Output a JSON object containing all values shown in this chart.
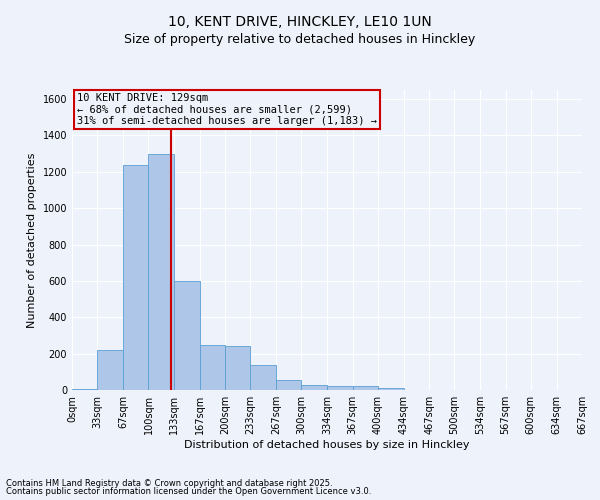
{
  "title1": "10, KENT DRIVE, HINCKLEY, LE10 1UN",
  "title2": "Size of property relative to detached houses in Hinckley",
  "xlabel": "Distribution of detached houses by size in Hinckley",
  "ylabel": "Number of detached properties",
  "footnote1": "Contains HM Land Registry data © Crown copyright and database right 2025.",
  "footnote2": "Contains public sector information licensed under the Open Government Licence v3.0.",
  "annotation_line1": "10 KENT DRIVE: 129sqm",
  "annotation_line2": "← 68% of detached houses are smaller (2,599)",
  "annotation_line3": "31% of semi-detached houses are larger (1,183) →",
  "bar_edges": [
    0,
    33,
    67,
    100,
    133,
    167,
    200,
    233,
    267,
    300,
    334,
    367,
    400,
    434,
    467,
    500,
    534,
    567,
    600,
    634,
    667
  ],
  "bar_heights": [
    5,
    220,
    1240,
    1300,
    600,
    245,
    240,
    140,
    55,
    25,
    22,
    20,
    10,
    2,
    0,
    0,
    0,
    0,
    0,
    0
  ],
  "bar_color": "#aec6e8",
  "bar_edge_color": "#5a9fd4",
  "vline_x": 129,
  "vline_color": "#cc0000",
  "annotation_box_color": "#cc0000",
  "ylim": [
    0,
    1650
  ],
  "yticks": [
    0,
    200,
    400,
    600,
    800,
    1000,
    1200,
    1400,
    1600
  ],
  "background_color": "#eef2fa",
  "grid_color": "#ffffff",
  "title1_fontsize": 10,
  "title2_fontsize": 9,
  "axis_label_fontsize": 8,
  "tick_fontsize": 7,
  "annotation_fontsize": 7.5,
  "footnote_fontsize": 6
}
